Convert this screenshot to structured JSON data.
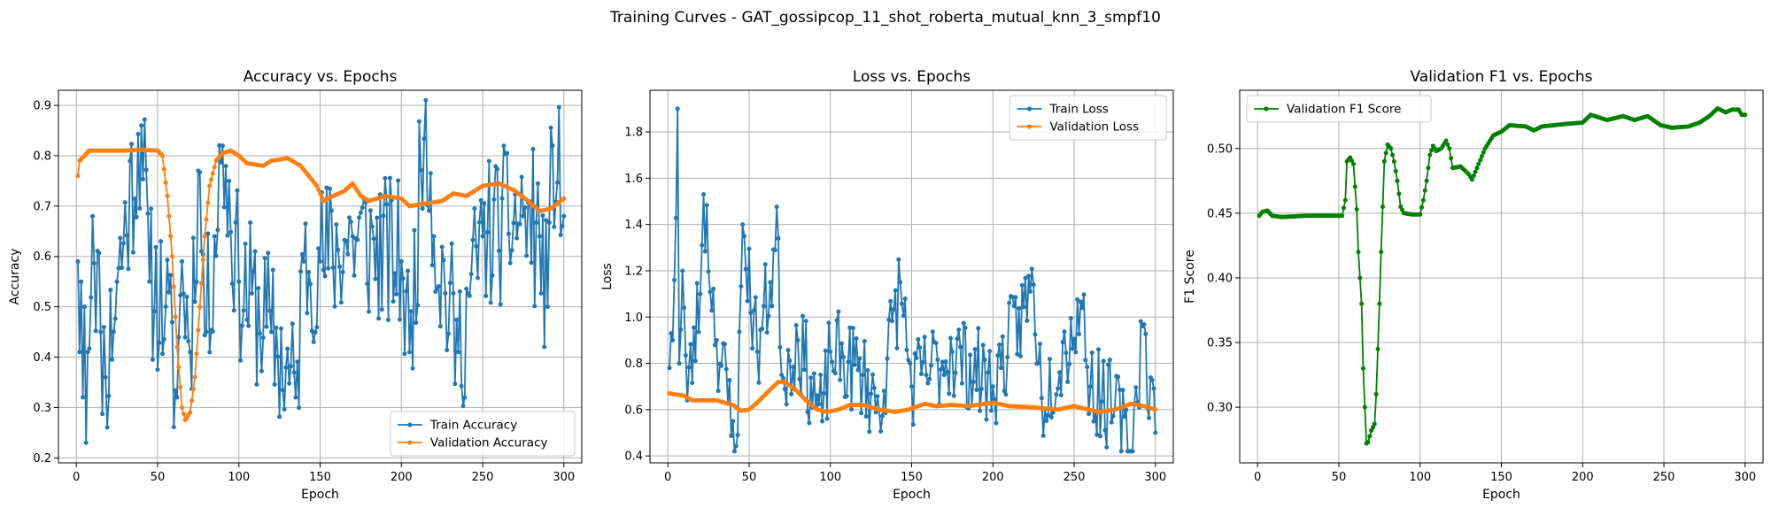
{
  "figure": {
    "title": "Training Curves - GAT_gossipcop_11_shot_roberta_mutual_knn_3_smpf10"
  },
  "chart_data": [
    {
      "type": "line",
      "title": "Accuracy vs. Epochs",
      "xlabel": "Epoch",
      "ylabel": "Accuracy",
      "xlim": [
        -11,
        311
      ],
      "ylim": [
        0.19,
        0.93
      ],
      "xticks": [
        0,
        50,
        100,
        150,
        200,
        250,
        300
      ],
      "yticks": [
        0.2,
        0.3,
        0.4,
        0.5,
        0.6,
        0.7,
        0.8,
        0.9
      ],
      "ytick_decimals": 1,
      "grid": true,
      "legend": "lower-right",
      "series": [
        {
          "name": "Train Accuracy",
          "color": "#1f77b4",
          "kind": "noisy",
          "seed": 11,
          "anchors": [
            [
              1,
              0.59
            ],
            [
              2,
              0.41
            ],
            [
              3,
              0.55
            ],
            [
              4,
              0.32
            ],
            [
              5,
              0.5
            ],
            [
              6,
              0.23
            ],
            [
              7,
              0.41
            ],
            [
              10,
              0.68
            ],
            [
              15,
              0.45
            ],
            [
              18,
              0.36
            ],
            [
              25,
              0.55
            ],
            [
              40,
              0.86
            ],
            [
              45,
              0.55
            ],
            [
              55,
              0.5
            ],
            [
              62,
              0.32
            ],
            [
              65,
              0.59
            ],
            [
              70,
              0.41
            ],
            [
              75,
              0.77
            ],
            [
              80,
              0.45
            ],
            [
              90,
              0.82
            ],
            [
              100,
              0.55
            ],
            [
              120,
              0.45
            ],
            [
              135,
              0.32
            ],
            [
              140,
              0.59
            ],
            [
              150,
              0.59
            ],
            [
              170,
              0.64
            ],
            [
              200,
              0.59
            ],
            [
              205,
              0.41
            ],
            [
              215,
              0.91
            ],
            [
              220,
              0.64
            ],
            [
              235,
              0.41
            ],
            [
              250,
              0.64
            ],
            [
              275,
              0.68
            ],
            [
              285,
              0.64
            ],
            [
              290,
              0.5
            ],
            [
              293,
              0.82
            ],
            [
              300,
              0.68
            ]
          ],
          "amp": 0.16,
          "ymin": 0.23,
          "ymax": 0.91
        },
        {
          "name": "Validation Accuracy",
          "color": "#ff7f0e",
          "kind": "smooth",
          "points": [
            [
              1,
              0.76
            ],
            [
              2,
              0.79
            ],
            [
              5,
              0.8
            ],
            [
              8,
              0.81
            ],
            [
              20,
              0.81
            ],
            [
              30,
              0.81
            ],
            [
              40,
              0.812
            ],
            [
              50,
              0.81
            ],
            [
              53,
              0.8
            ],
            [
              56,
              0.72
            ],
            [
              59,
              0.6
            ],
            [
              62,
              0.42
            ],
            [
              65,
              0.3
            ],
            [
              67,
              0.275
            ],
            [
              70,
              0.29
            ],
            [
              73,
              0.36
            ],
            [
              76,
              0.5
            ],
            [
              79,
              0.64
            ],
            [
              82,
              0.74
            ],
            [
              86,
              0.79
            ],
            [
              90,
              0.805
            ],
            [
              95,
              0.81
            ],
            [
              100,
              0.8
            ],
            [
              105,
              0.785
            ],
            [
              115,
              0.78
            ],
            [
              120,
              0.79
            ],
            [
              130,
              0.795
            ],
            [
              138,
              0.78
            ],
            [
              143,
              0.76
            ],
            [
              148,
              0.74
            ],
            [
              152,
              0.71
            ],
            [
              158,
              0.72
            ],
            [
              165,
              0.73
            ],
            [
              170,
              0.745
            ],
            [
              175,
              0.72
            ],
            [
              180,
              0.71
            ],
            [
              190,
              0.72
            ],
            [
              200,
              0.715
            ],
            [
              205,
              0.7
            ],
            [
              215,
              0.705
            ],
            [
              225,
              0.71
            ],
            [
              232,
              0.725
            ],
            [
              240,
              0.72
            ],
            [
              250,
              0.74
            ],
            [
              260,
              0.745
            ],
            [
              270,
              0.73
            ],
            [
              278,
              0.71
            ],
            [
              285,
              0.69
            ],
            [
              292,
              0.695
            ],
            [
              300,
              0.715
            ]
          ]
        }
      ]
    },
    {
      "type": "line",
      "title": "Loss vs. Epochs",
      "xlabel": "Epoch",
      "ylabel": "Loss",
      "xlim": [
        -11,
        311
      ],
      "ylim": [
        0.37,
        1.98
      ],
      "xticks": [
        0,
        50,
        100,
        150,
        200,
        250,
        300
      ],
      "yticks": [
        0.4,
        0.6,
        0.8,
        1.0,
        1.2,
        1.4,
        1.6,
        1.8
      ],
      "ytick_decimals": 1,
      "grid": true,
      "legend": "top-right",
      "series": [
        {
          "name": "Train Loss",
          "color": "#1f77b4",
          "kind": "noisy",
          "seed": 23,
          "anchors": [
            [
              1,
              0.78
            ],
            [
              2,
              0.93
            ],
            [
              3,
              0.9
            ],
            [
              4,
              1.16
            ],
            [
              6,
              1.9
            ],
            [
              7,
              0.8
            ],
            [
              9,
              1.2
            ],
            [
              12,
              0.64
            ],
            [
              20,
              1.1
            ],
            [
              22,
              1.53
            ],
            [
              30,
              0.9
            ],
            [
              40,
              0.55
            ],
            [
              43,
              0.49
            ],
            [
              46,
              1.4
            ],
            [
              55,
              0.85
            ],
            [
              68,
              1.34
            ],
            [
              70,
              0.75
            ],
            [
              80,
              0.9
            ],
            [
              95,
              0.55
            ],
            [
              100,
              0.85
            ],
            [
              120,
              0.75
            ],
            [
              130,
              0.6
            ],
            [
              143,
              1.15
            ],
            [
              150,
              0.7
            ],
            [
              175,
              0.85
            ],
            [
              200,
              0.7
            ],
            [
              225,
              1.14
            ],
            [
              230,
              0.65
            ],
            [
              255,
              1.04
            ],
            [
              260,
              0.7
            ],
            [
              275,
              0.6
            ],
            [
              285,
              0.42
            ],
            [
              292,
              0.96
            ],
            [
              300,
              0.5
            ]
          ],
          "amp": 0.2,
          "ymin": 0.42,
          "ymax": 1.9
        },
        {
          "name": "Validation Loss",
          "color": "#ff7f0e",
          "kind": "smooth",
          "points": [
            [
              1,
              0.67
            ],
            [
              10,
              0.66
            ],
            [
              15,
              0.64
            ],
            [
              30,
              0.64
            ],
            [
              40,
              0.62
            ],
            [
              45,
              0.595
            ],
            [
              50,
              0.6
            ],
            [
              55,
              0.63
            ],
            [
              62,
              0.68
            ],
            [
              68,
              0.72
            ],
            [
              72,
              0.72
            ],
            [
              78,
              0.69
            ],
            [
              85,
              0.64
            ],
            [
              92,
              0.6
            ],
            [
              98,
              0.59
            ],
            [
              105,
              0.6
            ],
            [
              112,
              0.62
            ],
            [
              120,
              0.62
            ],
            [
              130,
              0.6
            ],
            [
              140,
              0.59
            ],
            [
              148,
              0.6
            ],
            [
              158,
              0.625
            ],
            [
              165,
              0.615
            ],
            [
              175,
              0.62
            ],
            [
              185,
              0.615
            ],
            [
              200,
              0.63
            ],
            [
              210,
              0.615
            ],
            [
              225,
              0.61
            ],
            [
              240,
              0.6
            ],
            [
              250,
              0.615
            ],
            [
              265,
              0.59
            ],
            [
              275,
              0.6
            ],
            [
              285,
              0.625
            ],
            [
              293,
              0.615
            ],
            [
              300,
              0.6
            ]
          ]
        }
      ]
    },
    {
      "type": "line",
      "title": "Validation F1 vs. Epochs",
      "xlabel": "Epoch",
      "ylabel": "F1 Score",
      "xlim": [
        -11,
        311
      ],
      "ylim": [
        0.257,
        0.545
      ],
      "xticks": [
        0,
        50,
        100,
        150,
        200,
        250,
        300
      ],
      "yticks": [
        0.3,
        0.35,
        0.4,
        0.45,
        0.5
      ],
      "ytick_decimals": 2,
      "grid": true,
      "legend": "top-left",
      "series": [
        {
          "name": "Validation F1 Score",
          "color": "#008000",
          "kind": "smooth",
          "points": [
            [
              1,
              0.448
            ],
            [
              3,
              0.451
            ],
            [
              6,
              0.452
            ],
            [
              9,
              0.448
            ],
            [
              15,
              0.447
            ],
            [
              30,
              0.448
            ],
            [
              45,
              0.448
            ],
            [
              52,
              0.448
            ],
            [
              54,
              0.46
            ],
            [
              55,
              0.49
            ],
            [
              57,
              0.493
            ],
            [
              59,
              0.488
            ],
            [
              61,
              0.453
            ],
            [
              62,
              0.42
            ],
            [
              64,
              0.38
            ],
            [
              65,
              0.33
            ],
            [
              66,
              0.3
            ],
            [
              67,
              0.272
            ],
            [
              68,
              0.273
            ],
            [
              70,
              0.282
            ],
            [
              72,
              0.287
            ],
            [
              73,
              0.31
            ],
            [
              75,
              0.38
            ],
            [
              76,
              0.42
            ],
            [
              78,
              0.49
            ],
            [
              80,
              0.503
            ],
            [
              82,
              0.5
            ],
            [
              84,
              0.49
            ],
            [
              86,
              0.475
            ],
            [
              88,
              0.455
            ],
            [
              90,
              0.45
            ],
            [
              95,
              0.449
            ],
            [
              100,
              0.449
            ],
            [
              102,
              0.46
            ],
            [
              104,
              0.475
            ],
            [
              106,
              0.495
            ],
            [
              108,
              0.502
            ],
            [
              110,
              0.498
            ],
            [
              113,
              0.5
            ],
            [
              116,
              0.506
            ],
            [
              118,
              0.5
            ],
            [
              120,
              0.485
            ],
            [
              125,
              0.486
            ],
            [
              130,
              0.48
            ],
            [
              132,
              0.476
            ],
            [
              135,
              0.485
            ],
            [
              140,
              0.5
            ],
            [
              145,
              0.51
            ],
            [
              150,
              0.513
            ],
            [
              155,
              0.518
            ],
            [
              165,
              0.517
            ],
            [
              170,
              0.514
            ],
            [
              175,
              0.517
            ],
            [
              190,
              0.519
            ],
            [
              200,
              0.52
            ],
            [
              205,
              0.526
            ],
            [
              215,
              0.522
            ],
            [
              225,
              0.525
            ],
            [
              232,
              0.522
            ],
            [
              240,
              0.525
            ],
            [
              248,
              0.518
            ],
            [
              255,
              0.516
            ],
            [
              265,
              0.517
            ],
            [
              272,
              0.52
            ],
            [
              278,
              0.525
            ],
            [
              283,
              0.531
            ],
            [
              288,
              0.528
            ],
            [
              292,
              0.53
            ],
            [
              296,
              0.53
            ],
            [
              298,
              0.526
            ],
            [
              300,
              0.526
            ]
          ]
        }
      ]
    }
  ]
}
